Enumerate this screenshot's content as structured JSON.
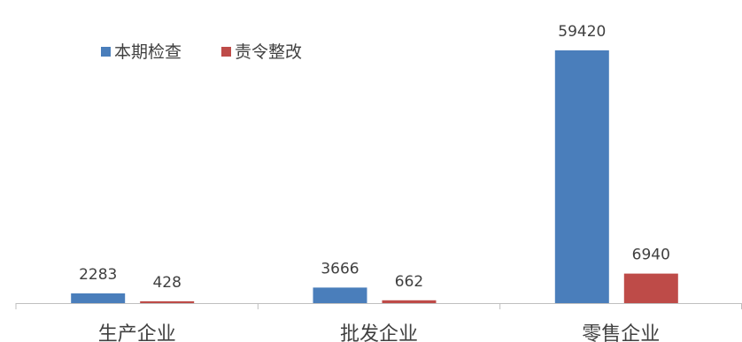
{
  "chart_data": {
    "type": "bar",
    "categories": [
      "生产企业",
      "批发企业",
      "零售企业"
    ],
    "series": [
      {
        "name": "本期检查",
        "values": [
          2283,
          3666,
          59420
        ],
        "color": "#4a7ebb"
      },
      {
        "name": "责令整改",
        "values": [
          428,
          662,
          6940
        ],
        "color": "#be4b48"
      }
    ],
    "title": "",
    "xlabel": "",
    "ylabel": "",
    "ylim": [
      0,
      61500
    ],
    "grid": false,
    "legend": "top-left",
    "data_labels": true
  }
}
